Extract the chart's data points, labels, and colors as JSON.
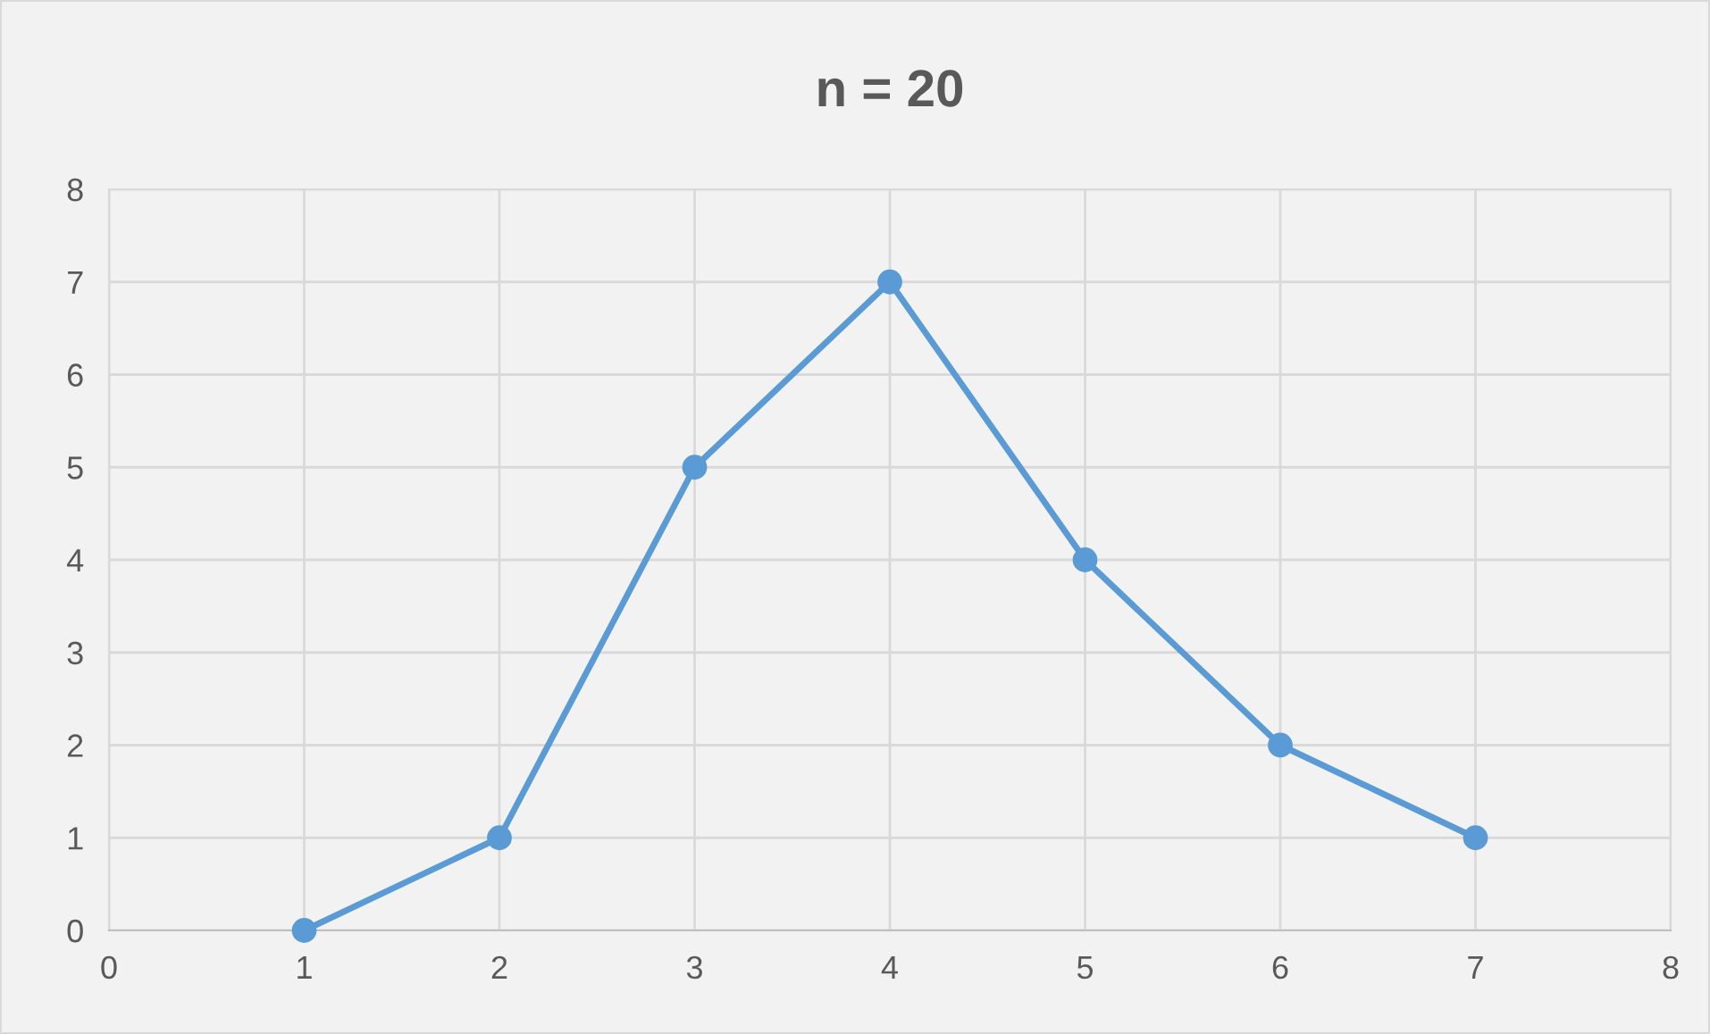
{
  "chart_data": {
    "type": "line",
    "title": "n = 20",
    "x": [
      1,
      2,
      3,
      4,
      5,
      6,
      7
    ],
    "series": [
      {
        "color": "#5b9bd5",
        "values": [
          0,
          1,
          5,
          7,
          4,
          2,
          1
        ]
      }
    ],
    "xlim": [
      0,
      8
    ],
    "xticks": [
      0,
      1,
      2,
      3,
      4,
      5,
      6,
      7,
      8
    ],
    "ylim": [
      0,
      8
    ],
    "yticks": [
      0,
      1,
      2,
      3,
      4,
      5,
      6,
      7,
      8
    ],
    "grid": true,
    "marker": "circle",
    "line_style": "solid"
  }
}
